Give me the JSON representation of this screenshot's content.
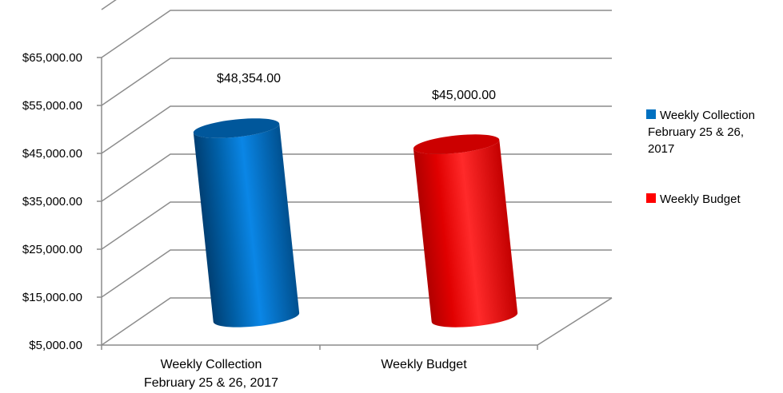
{
  "chart_data": {
    "type": "bar",
    "style": "3d-cylinder",
    "categories": [
      "Weekly Collection February 25 & 26, 2017",
      "Weekly Budget"
    ],
    "category_label_lines": [
      [
        "Weekly Collection",
        "February 25 & 26, 2017"
      ],
      [
        "Weekly Budget"
      ]
    ],
    "values": [
      48354,
      45000
    ],
    "data_labels": [
      "$48,354.00",
      "$45,000.00"
    ],
    "colors": [
      "#0070C0",
      "#FF0000"
    ],
    "ylim": [
      5000,
      65000
    ],
    "yticks": [
      5000,
      15000,
      25000,
      35000,
      45000,
      55000,
      65000
    ],
    "ytick_labels": [
      "$5,000.00",
      "$15,000.00",
      "$25,000.00",
      "$35,000.00",
      "$45,000.00",
      "$55,000.00",
      "$65,000.00"
    ],
    "grid": true,
    "legend_position": "right",
    "legend": [
      {
        "lines": [
          "Weekly Collection",
          "February 25 & 26,",
          "2017"
        ],
        "color": "#0070C0"
      },
      {
        "lines": [
          "Weekly Budget"
        ],
        "color": "#FF0000"
      }
    ],
    "title": "",
    "xlabel": "",
    "ylabel": ""
  }
}
